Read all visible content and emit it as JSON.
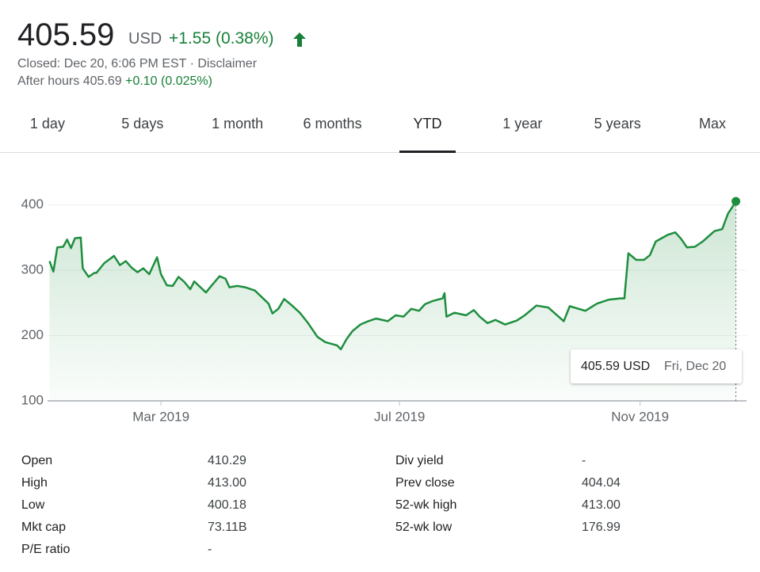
{
  "quote": {
    "price": "405.59",
    "currency": "USD",
    "change": "+1.55 (0.38%)",
    "closed": "Closed: Dec 20, 6:06 PM EST · Disclaimer",
    "after_hours": "After hours 405.69",
    "after_hours_change": "+0.10 (0.025%)"
  },
  "tabs": [
    "1 day",
    "5 days",
    "1 month",
    "6 months",
    "YTD",
    "1 year",
    "5 years",
    "Max"
  ],
  "active_tab": "YTD",
  "chart_data": {
    "type": "line",
    "color": "#1e8e3e",
    "grid": true,
    "x": [
      3,
      5,
      7,
      10,
      12,
      14,
      16,
      19,
      20,
      23,
      26,
      27,
      31,
      36,
      39,
      42,
      45,
      48,
      51,
      54,
      58,
      60,
      63,
      66,
      69,
      72,
      75,
      77,
      83,
      86,
      90,
      93,
      95,
      99,
      103,
      108,
      115,
      117,
      120,
      123,
      127,
      131,
      135,
      140,
      144,
      150,
      152,
      155,
      158,
      162,
      166,
      170,
      176,
      180,
      184,
      188,
      192,
      195,
      199,
      204,
      205,
      206,
      210,
      216,
      220,
      223,
      227,
      231,
      236,
      242,
      246,
      252,
      258,
      266,
      269,
      277,
      283,
      289,
      295,
      297,
      299,
      303,
      307,
      310,
      313,
      319,
      323,
      326,
      329,
      333,
      337,
      343,
      347,
      350,
      352,
      354
    ],
    "values": [
      314,
      298,
      335,
      336,
      347,
      334,
      349,
      350,
      303,
      290,
      296,
      296,
      311,
      322,
      308,
      314,
      304,
      297,
      303,
      294,
      320,
      294,
      277,
      276,
      290,
      282,
      271,
      283,
      266,
      277,
      291,
      287,
      274,
      276,
      274,
      269,
      249,
      234,
      241,
      256,
      246,
      235,
      220,
      198,
      190,
      185,
      179,
      195,
      207,
      217,
      222,
      226,
      222,
      231,
      229,
      241,
      238,
      248,
      253,
      257,
      265,
      229,
      235,
      231,
      239,
      229,
      219,
      224,
      217,
      223,
      231,
      246,
      243,
      222,
      245,
      238,
      249,
      255,
      257,
      257,
      326,
      316,
      316,
      323,
      344,
      354,
      358,
      348,
      335,
      336,
      344,
      360,
      363,
      387,
      396,
      405.59
    ],
    "xlim": [
      2,
      357
    ],
    "xticks": [
      {
        "value": 60,
        "label": "Mar 2019"
      },
      {
        "value": 182,
        "label": "Jul 2019"
      },
      {
        "value": 305,
        "label": "Nov 2019"
      }
    ],
    "ylim": [
      100,
      430
    ],
    "yticks": [
      100,
      200,
      300,
      400
    ]
  },
  "tooltip": {
    "price": "405.59 USD",
    "date": "Fri, Dec 20"
  },
  "stats": {
    "left": [
      [
        "Open",
        "410.29"
      ],
      [
        "High",
        "413.00"
      ],
      [
        "Low",
        "400.18"
      ],
      [
        "Mkt cap",
        "73.11B"
      ],
      [
        "P/E ratio",
        "-"
      ]
    ],
    "right": [
      [
        "Div yield",
        "-"
      ],
      [
        "Prev close",
        "404.04"
      ],
      [
        "52-wk high",
        "413.00"
      ],
      [
        "52-wk low",
        "176.99"
      ]
    ]
  }
}
